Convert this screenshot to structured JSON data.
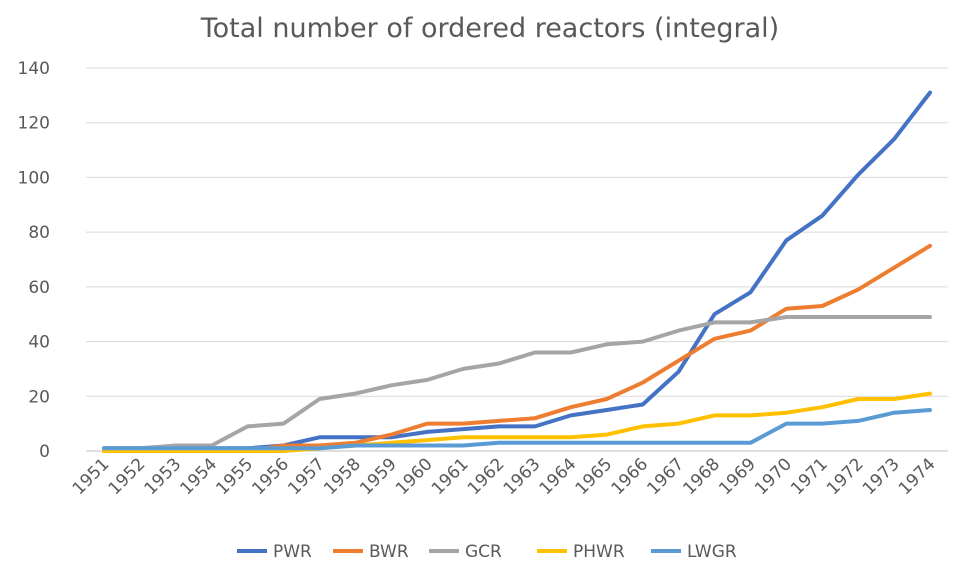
{
  "chart_data": {
    "type": "line",
    "title": "Total number of ordered reactors (integral)",
    "xlabel": "",
    "ylabel": "",
    "x": [
      "1951",
      "1952",
      "1953",
      "1954",
      "1955",
      "1956",
      "1957",
      "1958",
      "1959",
      "1960",
      "1961",
      "1962",
      "1963",
      "1964",
      "1965",
      "1966",
      "1967",
      "1968",
      "1969",
      "1970",
      "1971",
      "1972",
      "1973",
      "1974"
    ],
    "yticks": [
      0,
      20,
      40,
      60,
      80,
      100,
      120,
      140
    ],
    "ylim": [
      0,
      140
    ],
    "grid": true,
    "legend_position": "bottom",
    "series": [
      {
        "name": "PWR",
        "color": "#4472C4",
        "values": [
          1,
          1,
          1,
          1,
          1,
          2,
          5,
          5,
          5,
          7,
          8,
          9,
          9,
          13,
          15,
          17,
          29,
          50,
          58,
          77,
          86,
          101,
          114,
          131
        ]
      },
      {
        "name": "BWR",
        "color": "#ED7D31",
        "values": [
          0,
          0,
          0,
          0,
          0,
          2,
          2,
          3,
          6,
          10,
          10,
          11,
          12,
          16,
          19,
          25,
          33,
          41,
          44,
          52,
          53,
          59,
          67,
          75
        ]
      },
      {
        "name": "GCR",
        "color": "#A5A5A5",
        "values": [
          1,
          1,
          2,
          2,
          9,
          10,
          19,
          21,
          24,
          26,
          30,
          32,
          36,
          36,
          39,
          40,
          44,
          47,
          47,
          49,
          49,
          49,
          49,
          49
        ]
      },
      {
        "name": "PHWR",
        "color": "#FFC000",
        "values": [
          0,
          0,
          0,
          0,
          0,
          0,
          1,
          2,
          3,
          4,
          5,
          5,
          5,
          5,
          6,
          9,
          10,
          13,
          13,
          14,
          16,
          19,
          19,
          21
        ]
      },
      {
        "name": "LWGR",
        "color": "#5B9BD5",
        "values": [
          1,
          1,
          1,
          1,
          1,
          1,
          1,
          2,
          2,
          2,
          2,
          3,
          3,
          3,
          3,
          3,
          3,
          3,
          3,
          10,
          10,
          11,
          14,
          15
        ]
      }
    ]
  }
}
